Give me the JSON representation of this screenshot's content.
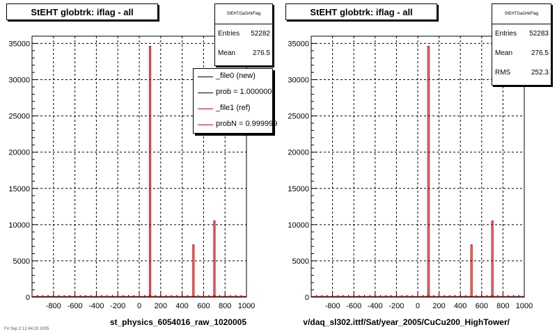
{
  "chart_data": [
    {
      "type": "bar",
      "title": "StEHT globtrk: iflag - all",
      "xlabel": "st_physics_6054016_raw_1020005",
      "ylabel": "",
      "xlim": [
        -1000,
        1000
      ],
      "ylim": [
        0,
        36000
      ],
      "x_ticks": [
        -800,
        -600,
        -400,
        -200,
        0,
        200,
        400,
        600,
        800,
        1000
      ],
      "y_ticks": [
        0,
        5000,
        10000,
        15000,
        20000,
        25000,
        30000,
        35000
      ],
      "grid": true,
      "bars": [
        {
          "x": 101,
          "y": 34600
        },
        {
          "x": 505,
          "y": 7200
        },
        {
          "x": 701,
          "y": 10500
        }
      ],
      "stats": {
        "name": "StEHTGaGrtkFlag",
        "rows": [
          {
            "label": "Entries",
            "value": "52282"
          },
          {
            "label": "Mean",
            "value": "276.5"
          }
        ]
      },
      "legend": {
        "placement": "top-right",
        "entries": [
          {
            "label": "_file0 (new)",
            "color": "#000000"
          },
          {
            "label": "prob = 1.000000",
            "color": "#000000"
          },
          {
            "label": "_file1 (ref)",
            "color": "#cc0000"
          },
          {
            "label": "probN = 0.999999",
            "color": "#cc0000"
          }
        ]
      }
    },
    {
      "type": "bar",
      "title": "StEHT globtrk: iflag - all",
      "xlabel": "v/daq_sl302.ittf/Sat/year_2005/CuCu200_HighTower/",
      "ylabel": "",
      "xlim": [
        -1000,
        1000
      ],
      "ylim": [
        0,
        36000
      ],
      "x_ticks": [
        -800,
        -600,
        -400,
        -200,
        0,
        200,
        400,
        600,
        800,
        1000
      ],
      "y_ticks": [
        0,
        5000,
        10000,
        15000,
        20000,
        25000,
        30000,
        35000
      ],
      "grid": true,
      "bars": [
        {
          "x": 101,
          "y": 34600
        },
        {
          "x": 505,
          "y": 7200
        },
        {
          "x": 701,
          "y": 10500
        }
      ],
      "stats": {
        "name": "StEHTGaGrtkFlag",
        "rows": [
          {
            "label": "Entries",
            "value": "52283"
          },
          {
            "label": "Mean",
            "value": "276.5"
          },
          {
            "label": "RMS",
            "value": "252.3"
          }
        ]
      }
    }
  ],
  "footer_text": "Fri Sep 2 12:44:20 2005",
  "colors": {
    "line": "#cc0000",
    "axis": "#000000",
    "background": "#ffffff"
  }
}
